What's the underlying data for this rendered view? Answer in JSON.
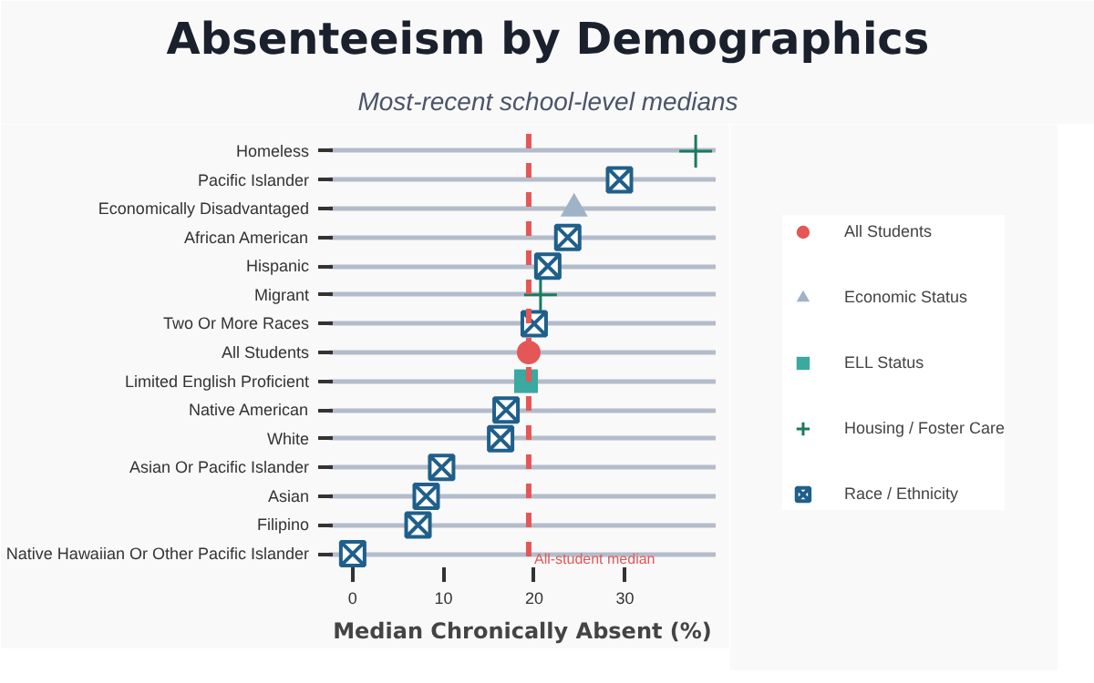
{
  "chart_data": {
    "type": "scatter",
    "title": "Absenteeism by Demographics",
    "subtitle": "Most-recent school-level medians",
    "xlabel": "Median Chronically Absent (%)",
    "orientation": "horizontal",
    "categories": [
      "Homeless",
      "Pacific Islander",
      "Economically Disadvantaged",
      "African American",
      "Hispanic",
      "Migrant",
      "Two Or More Races",
      "All Students",
      "Limited English Proficient",
      "Native American",
      "White",
      "Asian Or Pacific Islander",
      "Asian",
      "Filipino",
      "Native Hawaiian Or Other Pacific Islander"
    ],
    "series": [
      {
        "name": "All Students",
        "color": "#e45756",
        "marker": "circle",
        "values": [
          null,
          null,
          null,
          null,
          null,
          null,
          null,
          19.4,
          null,
          null,
          null,
          null,
          null,
          null,
          null
        ]
      },
      {
        "name": "Economic Status",
        "color": "#9eb3c6",
        "marker": "triangle",
        "values": [
          null,
          null,
          24.4,
          null,
          null,
          null,
          null,
          null,
          null,
          null,
          null,
          null,
          null,
          null,
          null
        ]
      },
      {
        "name": "ELL Status",
        "color": "#3aa99f",
        "marker": "square",
        "values": [
          null,
          null,
          null,
          null,
          null,
          null,
          null,
          null,
          19.1,
          null,
          null,
          null,
          null,
          null,
          null
        ]
      },
      {
        "name": "Housing / Foster Care",
        "color": "#1a7a5e",
        "marker": "cross",
        "values": [
          37.8,
          null,
          null,
          null,
          null,
          20.7,
          null,
          null,
          null,
          null,
          null,
          null,
          null,
          null,
          null
        ]
      },
      {
        "name": "Race / Ethnicity",
        "color": "#1f5f8b",
        "values": [
          null,
          29.4,
          null,
          23.7,
          21.5,
          null,
          20.0,
          null,
          null,
          16.9,
          16.3,
          9.8,
          8.1,
          7.2,
          0.0
        ]
      }
    ],
    "xlim": [
      -2.6,
      40
    ],
    "xticks": [
      0,
      10,
      20,
      30
    ],
    "grid": "y",
    "legend": "right",
    "ref_lines": [
      {
        "axis": "x",
        "value": 19.4,
        "label": "All-student median",
        "color": "#e45756",
        "line_style": "dashed"
      }
    ]
  }
}
